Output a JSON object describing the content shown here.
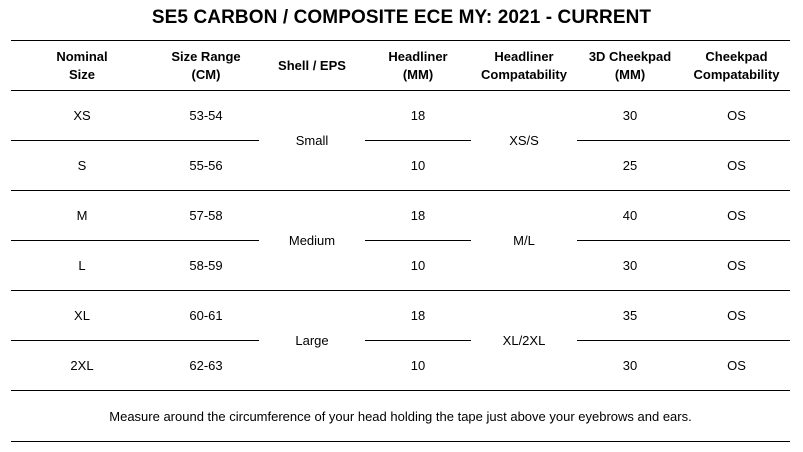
{
  "title": "SE5 CARBON / COMPOSITE ECE MY: 2021 - CURRENT",
  "columns": [
    [
      "Nominal",
      "Size"
    ],
    [
      "Size Range",
      "(CM)"
    ],
    [
      "Shell / EPS"
    ],
    [
      "Headliner",
      "(MM)"
    ],
    [
      "Headliner",
      "Compatability"
    ],
    [
      "3D Cheekpad",
      "(MM)"
    ],
    [
      "Cheekpad",
      "Compatability"
    ]
  ],
  "groups": [
    {
      "shell": "Small",
      "headliner_compat": "XS/S",
      "rows": [
        {
          "size": "XS",
          "range": "53-54",
          "headliner": "18",
          "cheekpad": "30",
          "cheek_compat": "OS"
        },
        {
          "size": "S",
          "range": "55-56",
          "headliner": "10",
          "cheekpad": "25",
          "cheek_compat": "OS"
        }
      ]
    },
    {
      "shell": "Medium",
      "headliner_compat": "M/L",
      "rows": [
        {
          "size": "M",
          "range": "57-58",
          "headliner": "18",
          "cheekpad": "40",
          "cheek_compat": "OS"
        },
        {
          "size": "L",
          "range": "58-59",
          "headliner": "10",
          "cheekpad": "30",
          "cheek_compat": "OS"
        }
      ]
    },
    {
      "shell": "Large",
      "headliner_compat": "XL/2XL",
      "rows": [
        {
          "size": "XL",
          "range": "60-61",
          "headliner": "18",
          "cheekpad": "35",
          "cheek_compat": "OS"
        },
        {
          "size": "2XL",
          "range": "62-63",
          "headliner": "10",
          "cheekpad": "30",
          "cheek_compat": "OS"
        }
      ]
    }
  ],
  "footer": "Measure around the circumference of your head holding the tape just above your eyebrows and ears."
}
